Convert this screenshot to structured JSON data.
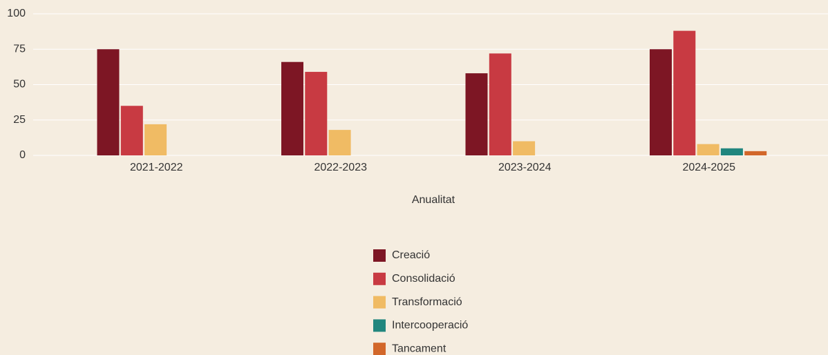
{
  "chart_data": {
    "type": "bar",
    "categories": [
      "2021-2022",
      "2022-2023",
      "2023-2024",
      "2024-2025"
    ],
    "x_label": "Anualitat",
    "series": [
      {
        "name": "Creació",
        "color": "#7d1624",
        "values": [
          75,
          66,
          58,
          75
        ]
      },
      {
        "name": "Consolidació",
        "color": "#c83a42",
        "values": [
          35,
          59,
          72,
          88
        ]
      },
      {
        "name": "Transformació",
        "color": "#f0bb64",
        "values": [
          22,
          18,
          10,
          8
        ]
      },
      {
        "name": "Intercooperació",
        "color": "#21867e",
        "values": [
          0,
          0,
          0,
          5
        ]
      },
      {
        "name": "Tancament",
        "color": "#d2672a",
        "values": [
          0,
          0,
          0,
          3
        ]
      }
    ],
    "ylim": [
      0,
      100
    ],
    "yticks": [
      0,
      25,
      50,
      75,
      100
    ],
    "grid": true,
    "legend": "bottom"
  }
}
